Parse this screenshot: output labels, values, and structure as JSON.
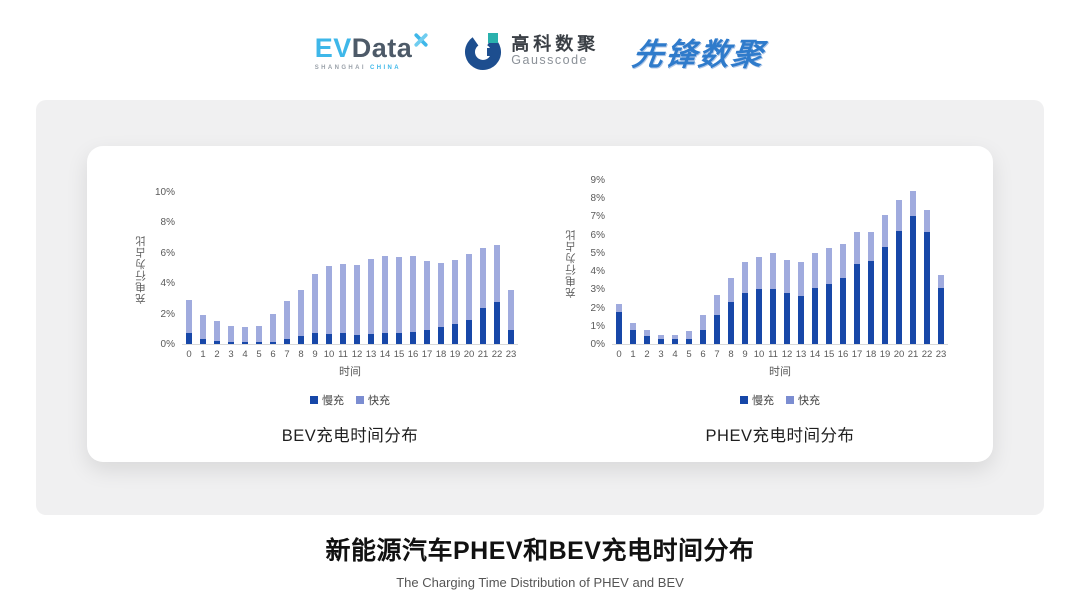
{
  "header": {
    "evdata": {
      "ev": "EV",
      "data": "Data",
      "sub_left": "SHANGHAI",
      "sub_right": "CHINA"
    },
    "gausscode": {
      "name_cn": "高科数聚",
      "name_en": "Gausscode"
    },
    "xianfeng": {
      "name": "先锋数聚"
    }
  },
  "footer": {
    "title": "新能源汽车PHEV和BEV充电时间分布",
    "subtitle": "The Charging Time Distribution of PHEV and BEV"
  },
  "colors": {
    "slow": "#1747A8",
    "fast": "#A0ABDE",
    "legend_fast": "#7B8DD1",
    "evdata_blue": "#3EB7E9",
    "gauss_dark": "#1D4E8F",
    "gauss_teal": "#2AB1AD",
    "xianfeng_blue": "#2F7BCB"
  },
  "chart_data": [
    {
      "type": "bar",
      "stacked": true,
      "title": "BEV充电时间分布",
      "xlabel": "时间",
      "ylabel": "充电行为占比",
      "ylim": [
        0,
        10
      ],
      "grid": false,
      "legend_position": "bottom",
      "y_tick_values": [
        0,
        2,
        4,
        6,
        8,
        10
      ],
      "y_tick_labels": [
        "0%",
        "2%",
        "4%",
        "6%",
        "8%",
        "10%"
      ],
      "categories": [
        "0",
        "1",
        "2",
        "3",
        "4",
        "5",
        "6",
        "7",
        "8",
        "9",
        "10",
        "11",
        "12",
        "13",
        "14",
        "15",
        "16",
        "17",
        "18",
        "19",
        "20",
        "21",
        "22",
        "23"
      ],
      "series": [
        {
          "name": "慢充",
          "values": [
            0.75,
            0.35,
            0.2,
            0.1,
            0.1,
            0.1,
            0.15,
            0.35,
            0.5,
            0.7,
            0.65,
            0.7,
            0.6,
            0.65,
            0.7,
            0.7,
            0.8,
            0.95,
            1.1,
            1.3,
            1.6,
            2.4,
            2.75,
            0.95
          ]
        },
        {
          "name": "快充",
          "values": [
            2.15,
            1.55,
            1.3,
            1.1,
            1.0,
            1.1,
            1.85,
            2.45,
            3.05,
            3.9,
            4.5,
            4.55,
            4.6,
            4.95,
            5.1,
            5.05,
            5.0,
            4.5,
            4.2,
            4.25,
            4.3,
            3.9,
            3.75,
            2.6
          ]
        }
      ]
    },
    {
      "type": "bar",
      "stacked": true,
      "title": "PHEV充电时间分布",
      "xlabel": "时间",
      "ylabel": "充电行为占比",
      "ylim": [
        0,
        9
      ],
      "grid": false,
      "legend_position": "bottom",
      "y_tick_values": [
        0,
        1,
        2,
        3,
        4,
        5,
        6,
        7,
        8,
        9
      ],
      "y_tick_labels": [
        "0%",
        "1%",
        "2%",
        "3%",
        "4%",
        "5%",
        "6%",
        "7%",
        "8%",
        "9%"
      ],
      "categories": [
        "0",
        "1",
        "2",
        "3",
        "4",
        "5",
        "6",
        "7",
        "8",
        "9",
        "10",
        "11",
        "12",
        "13",
        "14",
        "15",
        "16",
        "17",
        "18",
        "19",
        "20",
        "21",
        "22",
        "23"
      ],
      "series": [
        {
          "name": "慢充",
          "values": [
            1.75,
            0.75,
            0.45,
            0.25,
            0.25,
            0.3,
            0.75,
            1.6,
            2.3,
            2.8,
            3.0,
            3.0,
            2.8,
            2.65,
            3.1,
            3.3,
            3.6,
            4.4,
            4.55,
            5.35,
            6.2,
            7.0,
            6.15,
            3.05
          ]
        },
        {
          "name": "快充",
          "values": [
            0.45,
            0.4,
            0.3,
            0.25,
            0.25,
            0.4,
            0.85,
            1.1,
            1.35,
            1.7,
            1.8,
            2.0,
            1.8,
            1.85,
            1.9,
            1.95,
            1.9,
            1.75,
            1.6,
            1.75,
            1.7,
            1.4,
            1.2,
            0.75
          ]
        }
      ]
    }
  ]
}
